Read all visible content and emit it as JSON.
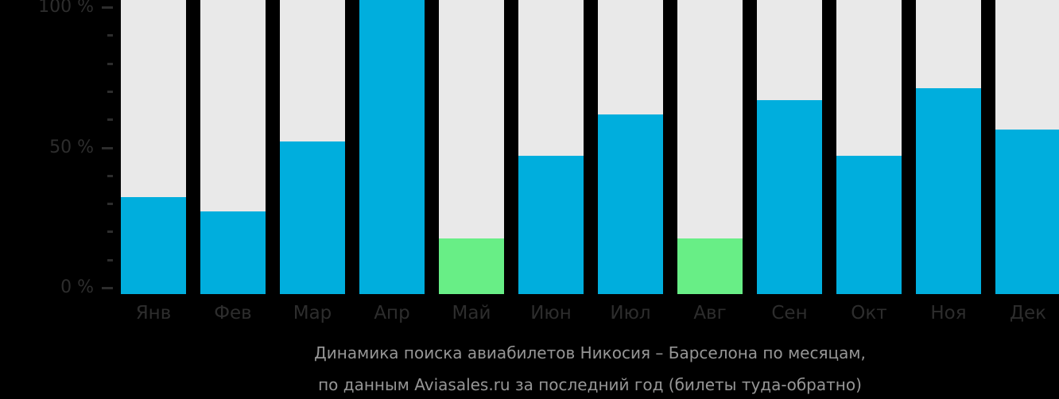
{
  "colors": {
    "background": "#000000",
    "bar_track": "#e9e9e9",
    "bar_blue": "#00aedd",
    "bar_green": "#68ee86",
    "axis_text": "#2d2d2d",
    "caption_text": "#969696"
  },
  "caption": {
    "line1": "Динамика поиска авиабилетов Никосия – Барселона по месяцам,",
    "line2": "по данным Aviasales.ru за последний год (билеты туда-обратно)"
  },
  "chart_data": {
    "type": "bar",
    "title": "Динамика поиска авиабилетов Никосия – Барселона по месяцам, по данным Aviasales.ru за последний год (билеты туда-обратно)",
    "categories": [
      "Янв",
      "Фев",
      "Мар",
      "Апр",
      "Май",
      "Июн",
      "Июл",
      "Авг",
      "Сен",
      "Окт",
      "Ноя",
      "Дек"
    ],
    "values": [
      33,
      28,
      52,
      100,
      19,
      47,
      61,
      19,
      66,
      47,
      70,
      56
    ],
    "value_unit": "%",
    "bar_colors": [
      "blue",
      "blue",
      "blue",
      "blue",
      "green",
      "blue",
      "blue",
      "green",
      "blue",
      "blue",
      "blue",
      "blue"
    ],
    "ylim": [
      0,
      100
    ],
    "grid": false,
    "legend": "none",
    "y_axis": {
      "major_ticks": [
        {
          "value": 100,
          "label": "100 %"
        },
        {
          "value": 50,
          "label": "50 %"
        },
        {
          "value": 0,
          "label": "0 %"
        }
      ],
      "minor_tick_values": [
        90,
        80,
        70,
        60,
        40,
        30,
        20,
        10
      ]
    }
  }
}
